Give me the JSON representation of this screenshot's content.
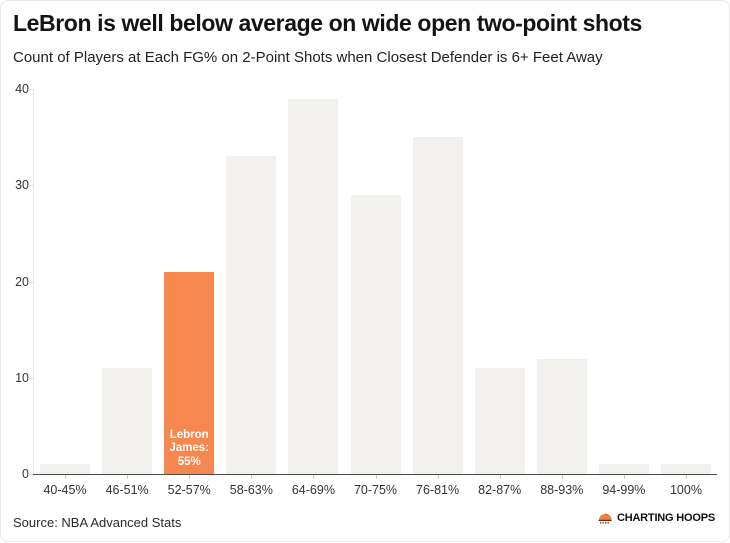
{
  "header": {
    "title": "LeBron is well below average on wide open two-point shots",
    "subtitle": "Count of Players at Each FG% on 2-Point Shots when Closest Defender is 6+ Feet Away"
  },
  "chart_data": {
    "type": "bar",
    "title": "LeBron is well below average on wide open two-point shots",
    "subtitle": "Count of Players at Each FG% on 2-Point Shots when Closest Defender is 6+ Feet Away",
    "categories": [
      "40-45%",
      "46-51%",
      "52-57%",
      "58-63%",
      "64-69%",
      "70-75%",
      "76-81%",
      "82-87%",
      "88-93%",
      "94-99%",
      "100%"
    ],
    "values": [
      1,
      11,
      21,
      33,
      39,
      29,
      35,
      11,
      12,
      1,
      1
    ],
    "highlight_index": 2,
    "highlight_label_lines": [
      "Lebron",
      "James:",
      "55%"
    ],
    "xlabel": "",
    "ylabel": "",
    "ylim": [
      0,
      40
    ],
    "yticks": [
      0,
      10,
      20,
      30,
      40
    ],
    "grid": false,
    "legend_position": "none",
    "colors": {
      "bar": "#F2F1ED",
      "highlight": "#F6874F",
      "axis": "#4d4d4d",
      "tick_text": "#333333"
    }
  },
  "footer": {
    "source": "Source: NBA Advanced Stats",
    "logo_text": "CHARTING HOOPS"
  }
}
